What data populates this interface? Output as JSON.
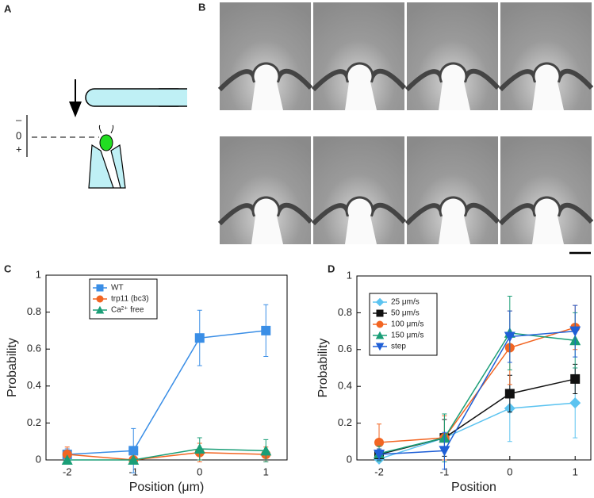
{
  "panel_labels": [
    "A",
    "B",
    "C",
    "D"
  ],
  "diagram": {
    "labels": [
      "–",
      "0",
      "+"
    ]
  },
  "chart_data": [
    {
      "type": "line",
      "x": [
        -2,
        -1,
        0,
        1
      ],
      "xlim": [
        -2.32,
        1.32
      ],
      "ylim": [
        0,
        1
      ],
      "xticks": [
        -2,
        -1,
        0,
        1
      ],
      "yticks": [
        0,
        0.2,
        0.4,
        0.6,
        0.8,
        1
      ],
      "xlabel": "Position (μm)",
      "ylabel": "Probability",
      "legend": "upper left",
      "series": [
        {
          "name": "WT",
          "color": "#3a8ee6",
          "marker": "square",
          "values": [
            0.03,
            0.05,
            0.66,
            0.7
          ],
          "errors": [
            0.03,
            0.12,
            0.15,
            0.14
          ]
        },
        {
          "name": "trp11 (bc3)",
          "color": "#f26522",
          "marker": "circle",
          "values": [
            0.03,
            0,
            0.04,
            0.03
          ],
          "errors": [
            0.04,
            0,
            0.05,
            0.04
          ]
        },
        {
          "name": "Ca²⁺ free",
          "color": "#1a9e77",
          "marker": "triangle",
          "values": [
            0,
            0,
            0.06,
            0.05
          ],
          "errors": [
            0,
            0,
            0.06,
            0.06
          ]
        }
      ]
    },
    {
      "type": "line",
      "x": [
        -2,
        -1,
        0,
        1
      ],
      "xlim": [
        -2.34,
        1.24
      ],
      "ylim": [
        0,
        1
      ],
      "xticks": [
        -2,
        -1,
        0,
        1
      ],
      "yticks": [
        0,
        0.2,
        0.4,
        0.6,
        0.8,
        1
      ],
      "xlabel": "Position",
      "ylabel": "Probability",
      "legend": "upper left",
      "series": [
        {
          "name": "25 μm/s",
          "color": "#5bc3f0",
          "marker": "diamond",
          "values": [
            0.005,
            0.12,
            0.28,
            0.31
          ],
          "errors": [
            0.01,
            0.1,
            0.18,
            0.19
          ]
        },
        {
          "name": "50 μm/s",
          "color": "#111111",
          "marker": "square",
          "values": [
            0.03,
            0.12,
            0.36,
            0.44
          ],
          "errors": [
            0.03,
            0.1,
            0.1,
            0.08
          ]
        },
        {
          "name": "100 μm/s",
          "color": "#f26522",
          "marker": "circle",
          "values": [
            0.095,
            0.12,
            0.61,
            0.72
          ],
          "errors": [
            0.1,
            0.12,
            0.2,
            0.12
          ]
        },
        {
          "name": "150 μm/s",
          "color": "#1a9e77",
          "marker": "triangle",
          "values": [
            0.035,
            0.12,
            0.69,
            0.65
          ],
          "errors": [
            0.04,
            0.13,
            0.2,
            0.15
          ]
        },
        {
          "name": "step",
          "color": "#1f5fd6",
          "marker": "down-triangle",
          "values": [
            0.03,
            0.05,
            0.67,
            0.7
          ],
          "errors": [
            0.03,
            0.1,
            0.14,
            0.14
          ]
        }
      ]
    }
  ]
}
